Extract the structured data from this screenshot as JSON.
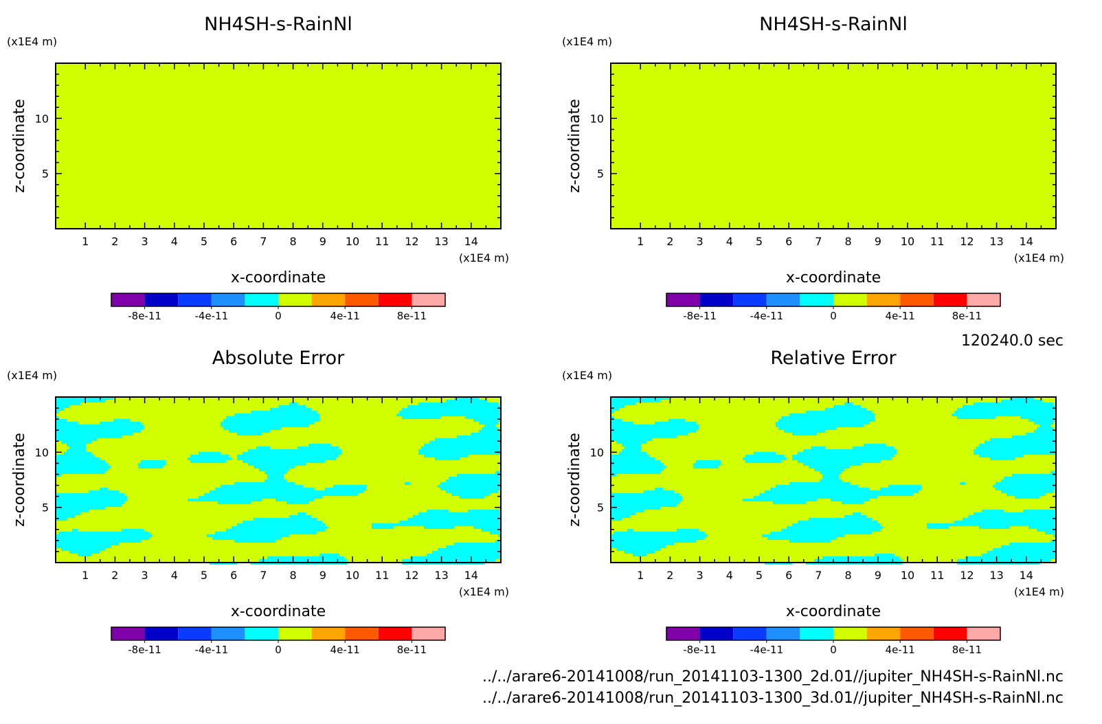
{
  "time_label": "120240.0 sec",
  "files": [
    "../../arare6-20141008/run_20141103-1300_2d.01//jupiter_NH4SH-s-RainNl.nc",
    "../../arare6-20141008/run_20141103-1300_3d.01//jupiter_NH4SH-s-RainNl.nc"
  ],
  "colorbar": {
    "colors": [
      "#7f00a8",
      "#0000c8",
      "#0a3cff",
      "#1e90ff",
      "#00ffff",
      "#d2ff00",
      "#ffa500",
      "#ff5a00",
      "#ff0000",
      "#ffa8a8"
    ],
    "tick_labels": [
      "-8e-11",
      "-4e-11",
      "0",
      "4e-11",
      "8e-11"
    ]
  },
  "chart_data": [
    {
      "type": "heatmap",
      "title": "NH4SH-s-RainNl",
      "xlabel": "x-coordinate",
      "ylabel": "z-coordinate",
      "x_unit": "(x1E4 m)",
      "y_unit": "(x1E4 m)",
      "xlim": [
        0,
        15
      ],
      "ylim": [
        0,
        15
      ],
      "x_ticks": [
        "1",
        "2",
        "3",
        "4",
        "5",
        "6",
        "7",
        "8",
        "9",
        "10",
        "11",
        "12",
        "13",
        "14"
      ],
      "y_ticks": [
        "5",
        "10"
      ],
      "field": "uniform",
      "fill_color": "#d2ff00",
      "value": 0
    },
    {
      "type": "heatmap",
      "title": "NH4SH-s-RainNl",
      "xlabel": "x-coordinate",
      "ylabel": "z-coordinate",
      "x_unit": "(x1E4 m)",
      "y_unit": "(x1E4 m)",
      "xlim": [
        0,
        15
      ],
      "ylim": [
        0,
        15
      ],
      "x_ticks": [
        "1",
        "2",
        "3",
        "4",
        "5",
        "6",
        "7",
        "8",
        "9",
        "10",
        "11",
        "12",
        "13",
        "14"
      ],
      "y_ticks": [
        "5",
        "10"
      ],
      "field": "uniform",
      "fill_color": "#d2ff00",
      "value": 0
    },
    {
      "type": "heatmap",
      "title": "Absolute Error",
      "xlabel": "x-coordinate",
      "ylabel": "z-coordinate",
      "x_unit": "(x1E4 m)",
      "y_unit": "(x1E4 m)",
      "xlim": [
        0,
        15
      ],
      "ylim": [
        0,
        15
      ],
      "x_ticks": [
        "1",
        "2",
        "3",
        "4",
        "5",
        "6",
        "7",
        "8",
        "9",
        "10",
        "11",
        "12",
        "13",
        "14"
      ],
      "y_ticks": [
        "5",
        "10"
      ],
      "field": "banded",
      "fill_color": "#d2ff00",
      "secondary_color": "#00ffff",
      "value_range": [
        -1e-11,
        1e-11
      ]
    },
    {
      "type": "heatmap",
      "title": "Relative Error",
      "xlabel": "x-coordinate",
      "ylabel": "z-coordinate",
      "x_unit": "(x1E4 m)",
      "y_unit": "(x1E4 m)",
      "xlim": [
        0,
        15
      ],
      "ylim": [
        0,
        15
      ],
      "x_ticks": [
        "1",
        "2",
        "3",
        "4",
        "5",
        "6",
        "7",
        "8",
        "9",
        "10",
        "11",
        "12",
        "13",
        "14"
      ],
      "y_ticks": [
        "5",
        "10"
      ],
      "field": "banded",
      "fill_color": "#d2ff00",
      "secondary_color": "#00ffff",
      "value_range": [
        -1e-11,
        1e-11
      ]
    }
  ]
}
